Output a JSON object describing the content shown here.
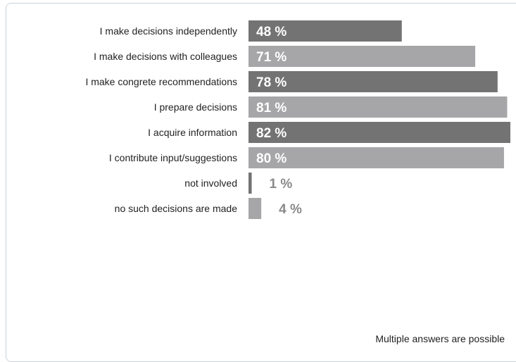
{
  "chart_data": {
    "type": "bar",
    "orientation": "horizontal",
    "categories": [
      "I make decisions independently",
      "I make decisions with colleagues",
      "I make congrete recommendations",
      "I prepare decisions",
      "I acquire information",
      "I contribute input/suggestions",
      "not involved",
      "no such decisions are made"
    ],
    "values": [
      48,
      71,
      78,
      81,
      82,
      80,
      1,
      4
    ],
    "value_labels": [
      "48 %",
      "71 %",
      "78 %",
      "81 %",
      "82 %",
      "80 %",
      "1 %",
      "4 %"
    ],
    "title": "",
    "xlabel": "",
    "ylabel": "",
    "xlim": [
      0,
      82
    ],
    "grid": false,
    "legend": "none",
    "colors": {
      "dark": "#737373",
      "light": "#a6a6a8",
      "outside_label": "#8a8a8a"
    }
  },
  "footnote": "Multiple answers are possible"
}
